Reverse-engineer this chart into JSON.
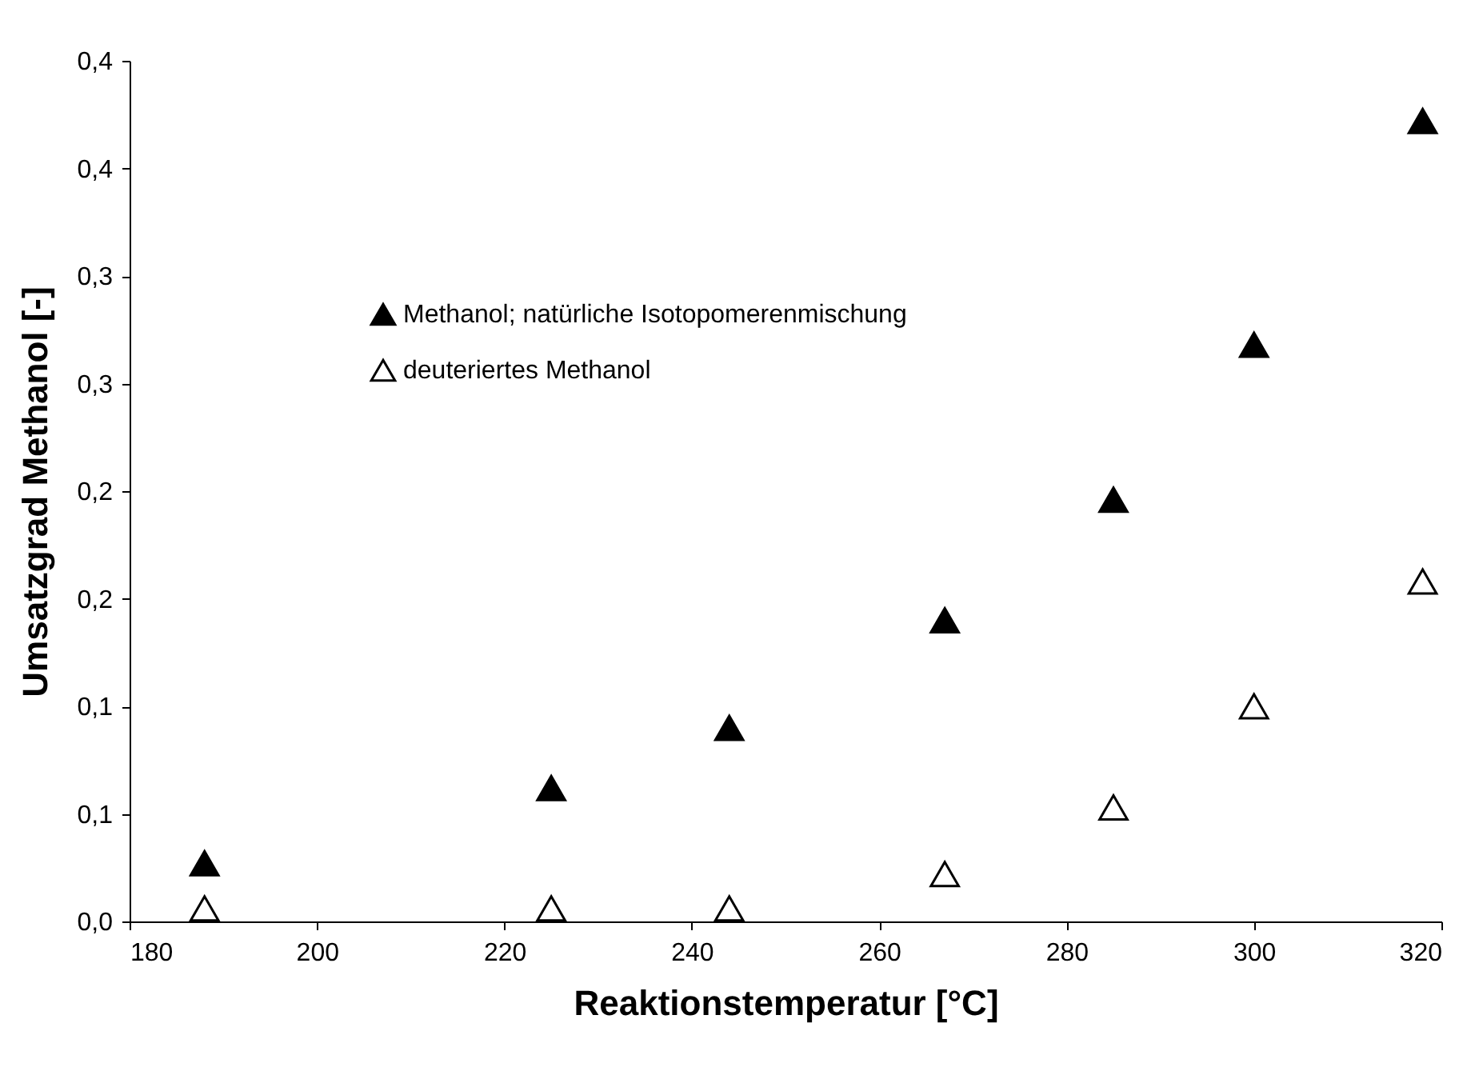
{
  "chart_data": {
    "type": "scatter",
    "xlabel": "Reaktionstemperatur [°C]",
    "ylabel": "Umsatzgrad Methanol [-]",
    "x": [
      188,
      225,
      244,
      267,
      285,
      300,
      318
    ],
    "series": [
      {
        "name": "Methanol; natürliche Isotopomerenmischung",
        "color": "#000000",
        "values": [
          0.027,
          0.062,
          0.09,
          0.14,
          0.196,
          0.268,
          0.372
        ]
      },
      {
        "name": "deuteriertes Methanol",
        "color": "#ffffff",
        "values": [
          0.006,
          0.006,
          0.006,
          0.022,
          0.053,
          0.1,
          0.158
        ]
      }
    ],
    "xlim": [
      180,
      320
    ],
    "xticks": [
      180,
      200,
      220,
      240,
      260,
      280,
      300,
      320
    ],
    "ylim": [
      0,
      0.4
    ],
    "yticks": [
      {
        "value": 0,
        "label": "0,0"
      },
      {
        "value": 0.05,
        "label": "0,1"
      },
      {
        "value": 0.1,
        "label": "0,1"
      },
      {
        "value": 0.15,
        "label": "0,2"
      },
      {
        "value": 0.2,
        "label": "0,2"
      },
      {
        "value": 0.25,
        "label": "0,3"
      },
      {
        "value": 0.3,
        "label": "0,3"
      },
      {
        "value": 0.35,
        "label": "0,4"
      },
      {
        "value": 0.4,
        "label": "0,4"
      }
    ],
    "grid": false,
    "legend": "top left",
    "marker": "triangle"
  }
}
